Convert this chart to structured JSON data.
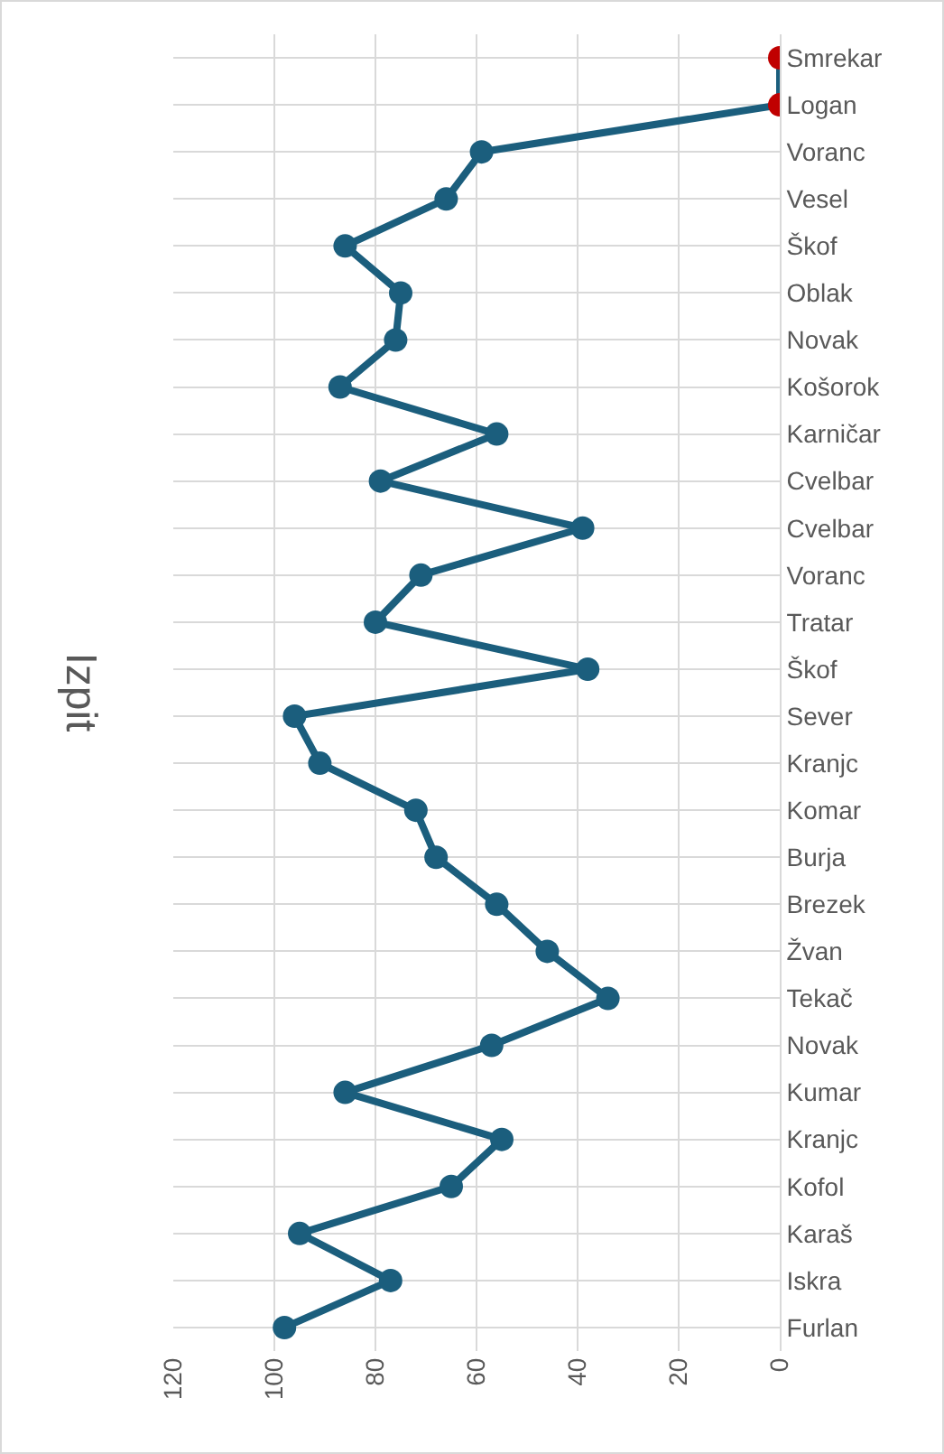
{
  "chart_data": {
    "type": "line",
    "title": "Izpit",
    "orientation": "horizontal",
    "categories": [
      "Smrekar",
      "Logan",
      "Voranc",
      "Vesel",
      "Škof",
      "Oblak",
      "Novak",
      "Košorok",
      "Karničar",
      "Cvelbar",
      "Cvelbar",
      "Voranc",
      "Tratar",
      "Škof",
      "Sever",
      "Kranjc",
      "Komar",
      "Burja",
      "Brezek",
      "Žvan",
      "Tekač",
      "Novak",
      "Kumar",
      "Kranjc",
      "Kofol",
      "Karaš",
      "Iskra",
      "Furlan"
    ],
    "values": [
      0,
      0,
      59,
      66,
      86,
      75,
      76,
      87,
      56,
      79,
      39,
      71,
      80,
      38,
      96,
      91,
      72,
      68,
      56,
      46,
      34,
      57,
      86,
      55,
      65,
      95,
      77,
      98
    ],
    "color": "#1b5e7d",
    "colors": [
      "#c00000",
      "#c00000",
      "#1b5e7d",
      "#1b5e7d",
      "#1b5e7d",
      "#1b5e7d",
      "#1b5e7d",
      "#1b5e7d",
      "#1b5e7d",
      "#1b5e7d",
      "#1b5e7d",
      "#1b5e7d",
      "#1b5e7d",
      "#1b5e7d",
      "#1b5e7d",
      "#1b5e7d",
      "#1b5e7d",
      "#1b5e7d",
      "#1b5e7d",
      "#1b5e7d",
      "#1b5e7d",
      "#1b5e7d",
      "#1b5e7d",
      "#1b5e7d",
      "#1b5e7d",
      "#1b5e7d",
      "#1b5e7d",
      "#1b5e7d"
    ],
    "xlim": [
      120,
      0
    ],
    "xticks": [
      0,
      20,
      40,
      60,
      80,
      100,
      120
    ],
    "grid": true,
    "marker": "circle",
    "line_style": "solid"
  }
}
